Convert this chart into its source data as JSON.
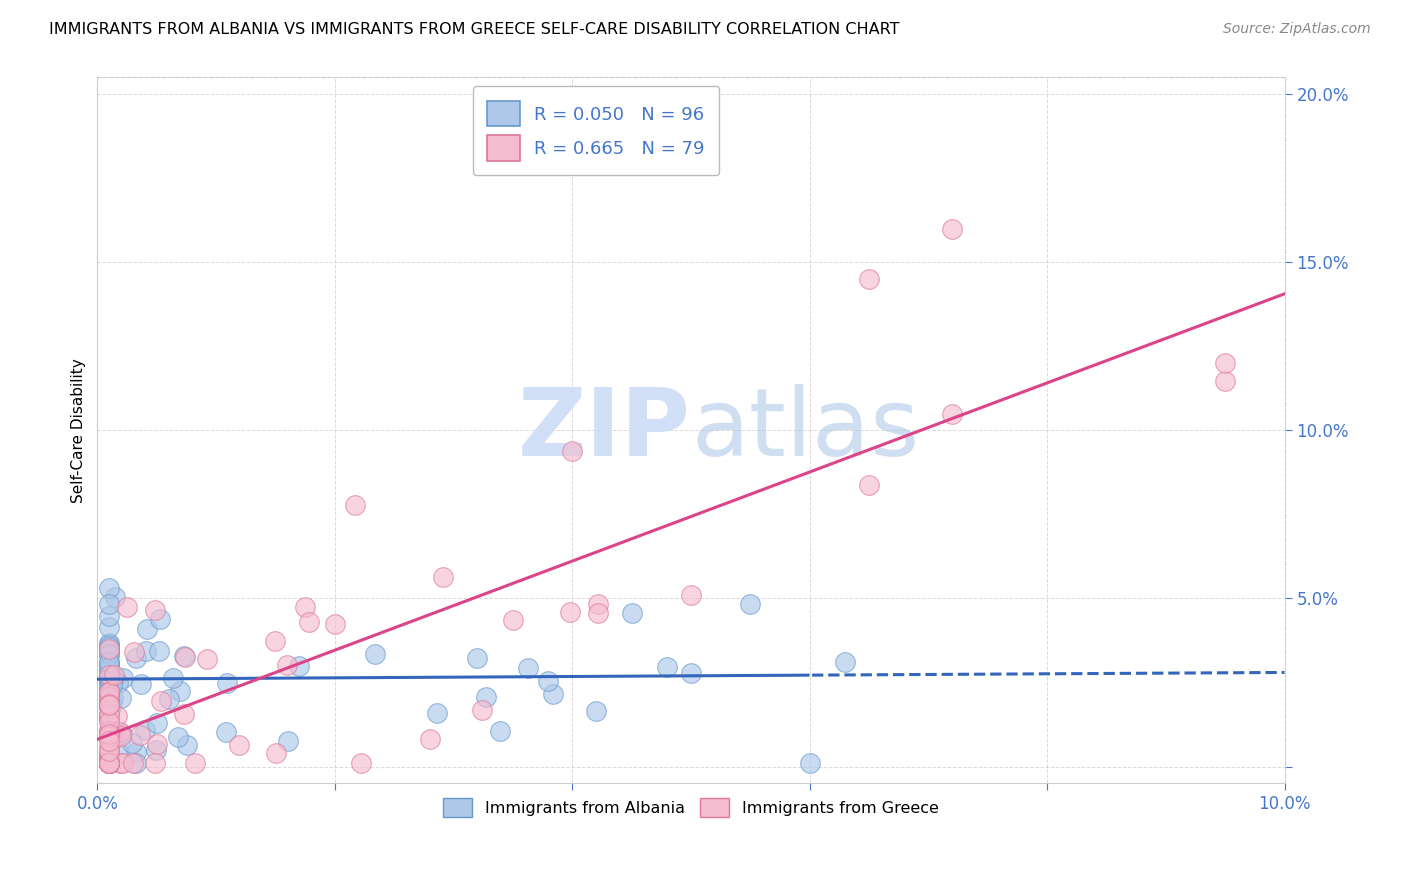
{
  "title": "IMMIGRANTS FROM ALBANIA VS IMMIGRANTS FROM GREECE SELF-CARE DISABILITY CORRELATION CHART",
  "source": "Source: ZipAtlas.com",
  "ylabel": "Self-Care Disability",
  "xlim": [
    0.0,
    0.1
  ],
  "ylim": [
    -0.005,
    0.205
  ],
  "xticks": [
    0.0,
    0.02,
    0.04,
    0.06,
    0.08,
    0.1
  ],
  "yticks": [
    0.0,
    0.05,
    0.1,
    0.15,
    0.2
  ],
  "albania_color": "#adc8e8",
  "albania_edge_color": "#6699cc",
  "greece_color": "#f5bcd0",
  "greece_edge_color": "#dd7799",
  "albania_line_color": "#3366bb",
  "greece_line_color": "#dd4488",
  "watermark_color": "#ccddf5",
  "legend_label1": "Immigrants from Albania",
  "legend_label2": "Immigrants from Greece",
  "albania_R": 0.05,
  "albania_N": 96,
  "greece_R": 0.665,
  "greece_N": 79,
  "tick_color": "#4477cc",
  "grid_color": "#cccccc",
  "title_fontsize": 11.5,
  "source_fontsize": 10,
  "tick_fontsize": 12,
  "legend_fontsize": 13
}
